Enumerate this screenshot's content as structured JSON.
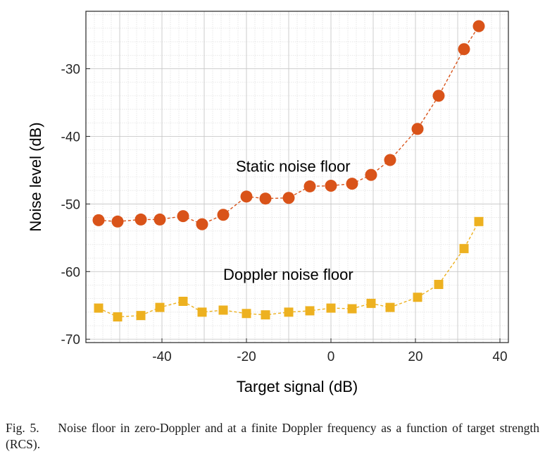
{
  "chart_data": {
    "type": "line",
    "xlabel": "Target signal (dB)",
    "ylabel": "Noise level (dB)",
    "xlim": [
      -58,
      42
    ],
    "ylim": [
      -70.5,
      -21.5
    ],
    "xticks": [
      -40,
      -20,
      0,
      20,
      40
    ],
    "yticks": [
      -70,
      -60,
      -50,
      -40,
      -30
    ],
    "grid": true,
    "minor_grid": true,
    "annotations": [
      {
        "text": "Static noise floor",
        "x": -22.5,
        "y": -45.2
      },
      {
        "text": "Doppler noise floor",
        "x": -25.5,
        "y": -61.2
      }
    ],
    "series": [
      {
        "label": "Static noise floor",
        "marker": "circle",
        "color": "#D95319",
        "points": [
          [
            -55,
            -52.4
          ],
          [
            -50.5,
            -52.6
          ],
          [
            -45,
            -52.3
          ],
          [
            -40.5,
            -52.3
          ],
          [
            -35,
            -51.8
          ],
          [
            -30.5,
            -53.0
          ],
          [
            -25.5,
            -51.6
          ],
          [
            -20,
            -48.9
          ],
          [
            -15.5,
            -49.2
          ],
          [
            -10,
            -49.1
          ],
          [
            -5,
            -47.4
          ],
          [
            0,
            -47.3
          ],
          [
            5,
            -47.0
          ],
          [
            9.5,
            -45.7
          ],
          [
            14,
            -43.5
          ],
          [
            20.5,
            -38.9
          ],
          [
            25.5,
            -34.0
          ],
          [
            31.5,
            -27.1
          ],
          [
            35,
            -23.7
          ]
        ]
      },
      {
        "label": "Doppler noise floor",
        "marker": "square",
        "color": "#EDB120",
        "points": [
          [
            -55,
            -65.4
          ],
          [
            -50.5,
            -66.7
          ],
          [
            -45,
            -66.5
          ],
          [
            -40.5,
            -65.3
          ],
          [
            -35,
            -64.4
          ],
          [
            -30.5,
            -66.0
          ],
          [
            -25.5,
            -65.7
          ],
          [
            -20,
            -66.2
          ],
          [
            -15.5,
            -66.4
          ],
          [
            -10,
            -66.0
          ],
          [
            -5,
            -65.8
          ],
          [
            0,
            -65.4
          ],
          [
            5,
            -65.5
          ],
          [
            9.5,
            -64.7
          ],
          [
            14,
            -65.3
          ],
          [
            20.5,
            -63.8
          ],
          [
            25.5,
            -61.9
          ],
          [
            31.5,
            -56.6
          ],
          [
            35,
            -52.6
          ]
        ]
      }
    ]
  },
  "caption": "Fig. 5.    Noise floor in zero-Doppler and at a finite Doppler frequency as a function of target strength (RCS)."
}
